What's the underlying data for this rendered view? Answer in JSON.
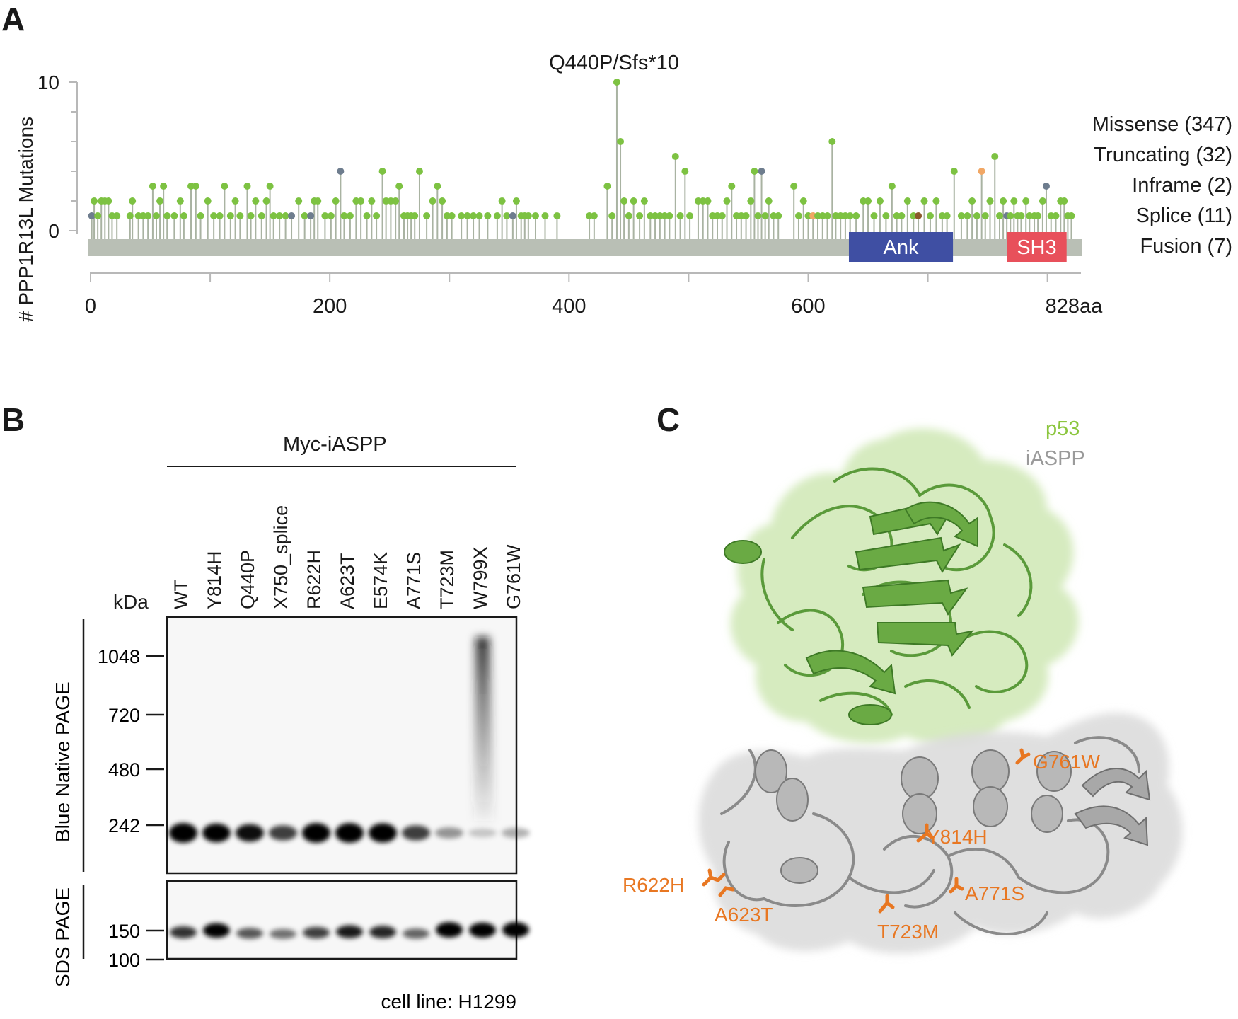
{
  "panel_a": {
    "letter": "A",
    "chart_data": {
      "type": "lollipop",
      "ylabel": "# PPP1R13L Mutations",
      "xlim": [
        0,
        828
      ],
      "ylim": [
        0,
        10
      ],
      "x_ticks": [
        {
          "value": 0,
          "label": "0"
        },
        {
          "value": 200,
          "label": "200"
        },
        {
          "value": 400,
          "label": "400"
        },
        {
          "value": 600,
          "label": "600"
        },
        {
          "value": 828,
          "label": "828aa"
        }
      ],
      "y_ticks": [
        {
          "value": 0,
          "label": "0"
        },
        {
          "value": 10,
          "label": "10"
        }
      ],
      "annotation": {
        "position": 440,
        "count": 10,
        "label": "Q440P/Sfs*10"
      },
      "domains": [
        {
          "name": "Ank",
          "start": 634,
          "end": 721,
          "color": "#3f4fa3"
        },
        {
          "name": "SH3",
          "start": 766,
          "end": 816,
          "color": "#e8505b"
        }
      ],
      "legend": [
        {
          "label": "Missense (347)",
          "color": "#7dc242"
        },
        {
          "label": "Truncating (32)",
          "color": "#8c8c8c"
        },
        {
          "label": "Inframe (2)",
          "color": "#8b5a2b"
        },
        {
          "label": "Splice (11)",
          "color": "#f1a765"
        },
        {
          "label": "Fusion (7)",
          "color": "#8e44ad"
        }
      ],
      "mutation_colors": {
        "missense": "#7dc242",
        "truncating": "#6e7d8e",
        "splice": "#f1a765",
        "inframe": "#8b5a2b"
      },
      "points": [
        {
          "x": 1,
          "y": 1,
          "t": "truncating"
        },
        {
          "x": 3,
          "y": 2,
          "t": "missense"
        },
        {
          "x": 6,
          "y": 1,
          "t": "missense"
        },
        {
          "x": 9,
          "y": 2,
          "t": "missense"
        },
        {
          "x": 12,
          "y": 2,
          "t": "missense"
        },
        {
          "x": 15,
          "y": 2,
          "t": "missense"
        },
        {
          "x": 18,
          "y": 1,
          "t": "missense"
        },
        {
          "x": 22,
          "y": 1,
          "t": "missense"
        },
        {
          "x": 33,
          "y": 1,
          "t": "missense"
        },
        {
          "x": 35,
          "y": 2,
          "t": "missense"
        },
        {
          "x": 40,
          "y": 1,
          "t": "missense"
        },
        {
          "x": 44,
          "y": 1,
          "t": "missense"
        },
        {
          "x": 48,
          "y": 1,
          "t": "missense"
        },
        {
          "x": 52,
          "y": 3,
          "t": "missense"
        },
        {
          "x": 55,
          "y": 1,
          "t": "missense"
        },
        {
          "x": 58,
          "y": 2,
          "t": "missense"
        },
        {
          "x": 61,
          "y": 3,
          "t": "missense"
        },
        {
          "x": 64,
          "y": 1,
          "t": "missense"
        },
        {
          "x": 70,
          "y": 1,
          "t": "missense"
        },
        {
          "x": 75,
          "y": 2,
          "t": "missense"
        },
        {
          "x": 78,
          "y": 1,
          "t": "missense"
        },
        {
          "x": 84,
          "y": 3,
          "t": "missense"
        },
        {
          "x": 88,
          "y": 3,
          "t": "missense"
        },
        {
          "x": 92,
          "y": 1,
          "t": "missense"
        },
        {
          "x": 98,
          "y": 2,
          "t": "missense"
        },
        {
          "x": 103,
          "y": 1,
          "t": "missense"
        },
        {
          "x": 108,
          "y": 1,
          "t": "missense"
        },
        {
          "x": 112,
          "y": 3,
          "t": "missense"
        },
        {
          "x": 117,
          "y": 1,
          "t": "missense"
        },
        {
          "x": 121,
          "y": 2,
          "t": "missense"
        },
        {
          "x": 125,
          "y": 1,
          "t": "missense"
        },
        {
          "x": 131,
          "y": 3,
          "t": "missense"
        },
        {
          "x": 134,
          "y": 1,
          "t": "missense"
        },
        {
          "x": 138,
          "y": 2,
          "t": "missense"
        },
        {
          "x": 143,
          "y": 1,
          "t": "missense"
        },
        {
          "x": 147,
          "y": 2,
          "t": "missense"
        },
        {
          "x": 150,
          "y": 3,
          "t": "missense"
        },
        {
          "x": 153,
          "y": 1,
          "t": "missense"
        },
        {
          "x": 158,
          "y": 1,
          "t": "missense"
        },
        {
          "x": 163,
          "y": 1,
          "t": "missense"
        },
        {
          "x": 168,
          "y": 1,
          "t": "truncating"
        },
        {
          "x": 174,
          "y": 2,
          "t": "missense"
        },
        {
          "x": 179,
          "y": 1,
          "t": "missense"
        },
        {
          "x": 184,
          "y": 1,
          "t": "truncating"
        },
        {
          "x": 187,
          "y": 2,
          "t": "missense"
        },
        {
          "x": 190,
          "y": 2,
          "t": "missense"
        },
        {
          "x": 196,
          "y": 1,
          "t": "missense"
        },
        {
          "x": 201,
          "y": 1,
          "t": "missense"
        },
        {
          "x": 205,
          "y": 2,
          "t": "missense"
        },
        {
          "x": 209,
          "y": 4,
          "t": "truncating"
        },
        {
          "x": 212,
          "y": 1,
          "t": "missense"
        },
        {
          "x": 217,
          "y": 1,
          "t": "missense"
        },
        {
          "x": 222,
          "y": 2,
          "t": "missense"
        },
        {
          "x": 226,
          "y": 2,
          "t": "missense"
        },
        {
          "x": 231,
          "y": 1,
          "t": "missense"
        },
        {
          "x": 235,
          "y": 2,
          "t": "missense"
        },
        {
          "x": 239,
          "y": 1,
          "t": "missense"
        },
        {
          "x": 244,
          "y": 4,
          "t": "missense"
        },
        {
          "x": 247,
          "y": 2,
          "t": "missense"
        },
        {
          "x": 251,
          "y": 2,
          "t": "missense"
        },
        {
          "x": 255,
          "y": 2,
          "t": "missense"
        },
        {
          "x": 258,
          "y": 3,
          "t": "missense"
        },
        {
          "x": 262,
          "y": 1,
          "t": "missense"
        },
        {
          "x": 265,
          "y": 1,
          "t": "missense"
        },
        {
          "x": 268,
          "y": 1,
          "t": "missense"
        },
        {
          "x": 271,
          "y": 1,
          "t": "missense"
        },
        {
          "x": 275,
          "y": 4,
          "t": "missense"
        },
        {
          "x": 281,
          "y": 1,
          "t": "missense"
        },
        {
          "x": 286,
          "y": 2,
          "t": "missense"
        },
        {
          "x": 290,
          "y": 3,
          "t": "missense"
        },
        {
          "x": 294,
          "y": 2,
          "t": "missense"
        },
        {
          "x": 298,
          "y": 1,
          "t": "missense"
        },
        {
          "x": 302,
          "y": 1,
          "t": "missense"
        },
        {
          "x": 310,
          "y": 1,
          "t": "missense"
        },
        {
          "x": 315,
          "y": 1,
          "t": "missense"
        },
        {
          "x": 320,
          "y": 1,
          "t": "missense"
        },
        {
          "x": 325,
          "y": 1,
          "t": "missense"
        },
        {
          "x": 332,
          "y": 1,
          "t": "missense"
        },
        {
          "x": 340,
          "y": 1,
          "t": "missense"
        },
        {
          "x": 344,
          "y": 2,
          "t": "missense"
        },
        {
          "x": 348,
          "y": 1,
          "t": "missense"
        },
        {
          "x": 353,
          "y": 1,
          "t": "truncating"
        },
        {
          "x": 356,
          "y": 2,
          "t": "missense"
        },
        {
          "x": 360,
          "y": 1,
          "t": "missense"
        },
        {
          "x": 363,
          "y": 1,
          "t": "missense"
        },
        {
          "x": 366,
          "y": 1,
          "t": "missense"
        },
        {
          "x": 372,
          "y": 1,
          "t": "missense"
        },
        {
          "x": 380,
          "y": 1,
          "t": "missense"
        },
        {
          "x": 390,
          "y": 1,
          "t": "missense"
        },
        {
          "x": 417,
          "y": 1,
          "t": "missense"
        },
        {
          "x": 421,
          "y": 1,
          "t": "missense"
        },
        {
          "x": 432,
          "y": 3,
          "t": "missense"
        },
        {
          "x": 436,
          "y": 1,
          "t": "missense"
        },
        {
          "x": 440,
          "y": 10,
          "t": "missense"
        },
        {
          "x": 443,
          "y": 6,
          "t": "missense"
        },
        {
          "x": 446,
          "y": 2,
          "t": "missense"
        },
        {
          "x": 450,
          "y": 1,
          "t": "missense"
        },
        {
          "x": 454,
          "y": 2,
          "t": "missense"
        },
        {
          "x": 459,
          "y": 1,
          "t": "missense"
        },
        {
          "x": 463,
          "y": 2,
          "t": "missense"
        },
        {
          "x": 468,
          "y": 1,
          "t": "missense"
        },
        {
          "x": 472,
          "y": 1,
          "t": "missense"
        },
        {
          "x": 476,
          "y": 1,
          "t": "missense"
        },
        {
          "x": 480,
          "y": 1,
          "t": "missense"
        },
        {
          "x": 484,
          "y": 1,
          "t": "missense"
        },
        {
          "x": 489,
          "y": 5,
          "t": "missense"
        },
        {
          "x": 493,
          "y": 1,
          "t": "missense"
        },
        {
          "x": 497,
          "y": 4,
          "t": "missense"
        },
        {
          "x": 501,
          "y": 1,
          "t": "missense"
        },
        {
          "x": 508,
          "y": 2,
          "t": "missense"
        },
        {
          "x": 512,
          "y": 2,
          "t": "missense"
        },
        {
          "x": 516,
          "y": 2,
          "t": "missense"
        },
        {
          "x": 520,
          "y": 1,
          "t": "missense"
        },
        {
          "x": 524,
          "y": 1,
          "t": "missense"
        },
        {
          "x": 528,
          "y": 1,
          "t": "missense"
        },
        {
          "x": 532,
          "y": 2,
          "t": "missense"
        },
        {
          "x": 536,
          "y": 3,
          "t": "missense"
        },
        {
          "x": 540,
          "y": 1,
          "t": "missense"
        },
        {
          "x": 544,
          "y": 1,
          "t": "missense"
        },
        {
          "x": 548,
          "y": 1,
          "t": "missense"
        },
        {
          "x": 552,
          "y": 2,
          "t": "missense"
        },
        {
          "x": 555,
          "y": 4,
          "t": "missense"
        },
        {
          "x": 558,
          "y": 1,
          "t": "missense"
        },
        {
          "x": 561,
          "y": 4,
          "t": "truncating"
        },
        {
          "x": 564,
          "y": 1,
          "t": "missense"
        },
        {
          "x": 567,
          "y": 2,
          "t": "missense"
        },
        {
          "x": 571,
          "y": 1,
          "t": "missense"
        },
        {
          "x": 575,
          "y": 1,
          "t": "missense"
        },
        {
          "x": 588,
          "y": 3,
          "t": "missense"
        },
        {
          "x": 592,
          "y": 1,
          "t": "missense"
        },
        {
          "x": 596,
          "y": 2,
          "t": "missense"
        },
        {
          "x": 600,
          "y": 1,
          "t": "missense"
        },
        {
          "x": 604,
          "y": 1,
          "t": "splice"
        },
        {
          "x": 608,
          "y": 1,
          "t": "missense"
        },
        {
          "x": 612,
          "y": 1,
          "t": "missense"
        },
        {
          "x": 616,
          "y": 1,
          "t": "missense"
        },
        {
          "x": 620,
          "y": 6,
          "t": "missense"
        },
        {
          "x": 623,
          "y": 1,
          "t": "missense"
        },
        {
          "x": 627,
          "y": 1,
          "t": "missense"
        },
        {
          "x": 631,
          "y": 1,
          "t": "missense"
        },
        {
          "x": 635,
          "y": 1,
          "t": "missense"
        },
        {
          "x": 640,
          "y": 1,
          "t": "missense"
        },
        {
          "x": 646,
          "y": 2,
          "t": "missense"
        },
        {
          "x": 650,
          "y": 2,
          "t": "missense"
        },
        {
          "x": 655,
          "y": 1,
          "t": "missense"
        },
        {
          "x": 660,
          "y": 2,
          "t": "missense"
        },
        {
          "x": 665,
          "y": 1,
          "t": "missense"
        },
        {
          "x": 670,
          "y": 3,
          "t": "missense"
        },
        {
          "x": 674,
          "y": 1,
          "t": "missense"
        },
        {
          "x": 678,
          "y": 1,
          "t": "missense"
        },
        {
          "x": 683,
          "y": 2,
          "t": "missense"
        },
        {
          "x": 688,
          "y": 1,
          "t": "missense"
        },
        {
          "x": 692,
          "y": 1,
          "t": "inframe"
        },
        {
          "x": 697,
          "y": 2,
          "t": "missense"
        },
        {
          "x": 702,
          "y": 1,
          "t": "missense"
        },
        {
          "x": 707,
          "y": 2,
          "t": "missense"
        },
        {
          "x": 712,
          "y": 1,
          "t": "missense"
        },
        {
          "x": 716,
          "y": 1,
          "t": "missense"
        },
        {
          "x": 722,
          "y": 4,
          "t": "missense"
        },
        {
          "x": 728,
          "y": 1,
          "t": "missense"
        },
        {
          "x": 733,
          "y": 1,
          "t": "missense"
        },
        {
          "x": 737,
          "y": 2,
          "t": "missense"
        },
        {
          "x": 741,
          "y": 1,
          "t": "missense"
        },
        {
          "x": 745,
          "y": 4,
          "t": "splice"
        },
        {
          "x": 748,
          "y": 1,
          "t": "missense"
        },
        {
          "x": 752,
          "y": 2,
          "t": "missense"
        },
        {
          "x": 756,
          "y": 5,
          "t": "missense"
        },
        {
          "x": 760,
          "y": 1,
          "t": "missense"
        },
        {
          "x": 763,
          "y": 2,
          "t": "missense"
        },
        {
          "x": 766,
          "y": 1,
          "t": "truncating"
        },
        {
          "x": 769,
          "y": 1,
          "t": "missense"
        },
        {
          "x": 772,
          "y": 2,
          "t": "missense"
        },
        {
          "x": 775,
          "y": 1,
          "t": "missense"
        },
        {
          "x": 778,
          "y": 1,
          "t": "missense"
        },
        {
          "x": 782,
          "y": 2,
          "t": "missense"
        },
        {
          "x": 785,
          "y": 1,
          "t": "missense"
        },
        {
          "x": 789,
          "y": 1,
          "t": "missense"
        },
        {
          "x": 792,
          "y": 1,
          "t": "missense"
        },
        {
          "x": 796,
          "y": 2,
          "t": "missense"
        },
        {
          "x": 799,
          "y": 3,
          "t": "truncating"
        },
        {
          "x": 803,
          "y": 1,
          "t": "missense"
        },
        {
          "x": 807,
          "y": 1,
          "t": "missense"
        },
        {
          "x": 811,
          "y": 2,
          "t": "missense"
        },
        {
          "x": 814,
          "y": 2,
          "t": "missense"
        },
        {
          "x": 817,
          "y": 1,
          "t": "missense"
        },
        {
          "x": 820,
          "y": 1,
          "t": "missense"
        }
      ]
    }
  },
  "panel_b": {
    "letter": "B",
    "header": "Myc-iASPP",
    "kda_label": "kDa",
    "lanes": [
      "WT",
      "Y814H",
      "Q440P",
      "X750_splice",
      "R622H",
      "A623T",
      "E574K",
      "A771S",
      "T723M",
      "W799X",
      "G761W"
    ],
    "bn_page": {
      "label": "Blue Native PAGE",
      "markers": [
        "1048",
        "720",
        "480",
        "242"
      ],
      "band_242_intensity": [
        1.0,
        0.9,
        0.8,
        0.6,
        1.0,
        1.0,
        0.95,
        0.6,
        0.25,
        0.05,
        0.15
      ],
      "w799x_smear_present": true
    },
    "sds_page": {
      "label": "SDS PAGE",
      "markers": [
        "150",
        "100"
      ],
      "band_intensity": [
        0.6,
        0.9,
        0.45,
        0.35,
        0.55,
        0.7,
        0.65,
        0.4,
        1.0,
        0.95,
        1.0
      ]
    },
    "cell_line": "cell line: H1299"
  },
  "panel_c": {
    "letter": "C",
    "legend_p53": "p53",
    "legend_iaspp": "iASPP",
    "colors": {
      "p53": "#8cc63f",
      "iaspp": "#9a9a9a",
      "mutation": "#e87722"
    },
    "mutations": [
      "G761W",
      "Y814H",
      "R622H",
      "A623T",
      "T723M",
      "A771S"
    ]
  }
}
